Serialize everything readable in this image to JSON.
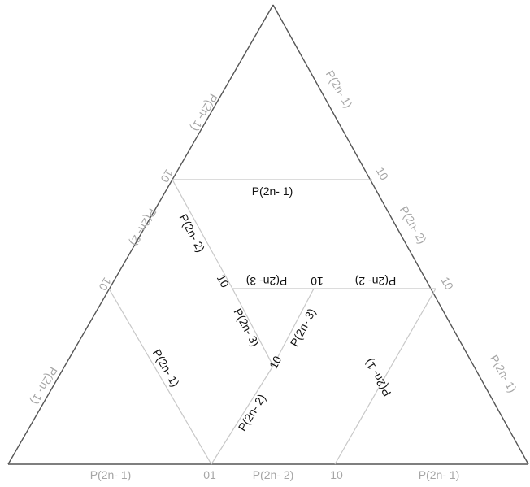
{
  "labels": {
    "outer_left_upper_10": "10",
    "outer_left_upper_text": "P(2n- 1)",
    "outer_left_mid_text": "P(2n- 2)",
    "outer_left_lower_10": "10",
    "outer_left_lower_text": "P(2n- 1)",
    "outer_right_upper_text": "P(2n- 1)",
    "outer_right_upper_10": "10",
    "outer_right_mid_text": "P(2n- 2)",
    "outer_right_mid_10": "10",
    "outer_right_lower_text": "P(2n- 1)",
    "bottom_left_text": "P(2n- 1)",
    "bottom_01": "01",
    "bottom_mid_text": "P(2n- 2)",
    "bottom_10": "10",
    "bottom_right_text": "P(2n- 1)",
    "top_chord": "P(2n- 1)",
    "inner_upper_left_text": "P(2n- 2)",
    "inner_upper_left_10": "10",
    "mid_chord_left_text": "P(2n- 3)",
    "mid_chord_10": "10",
    "mid_chord_right_text": "P(2n- 2)",
    "inner_lower_left_text": "P(2n- 3)",
    "inner_lower_left_10": "10",
    "inner_upper_right_text": "P(2n- 3)",
    "inner_lower_right_text": "P(2n- 2)",
    "lower_left_chord_text": "P(2n- 1)",
    "lower_right_chord_text": "P(2n- 1)"
  },
  "colors": {
    "outer_edge": "#555555",
    "inner_edge": "#c8c8c8",
    "grey_text": "#a6a6a6",
    "dark_text": "#111111"
  }
}
